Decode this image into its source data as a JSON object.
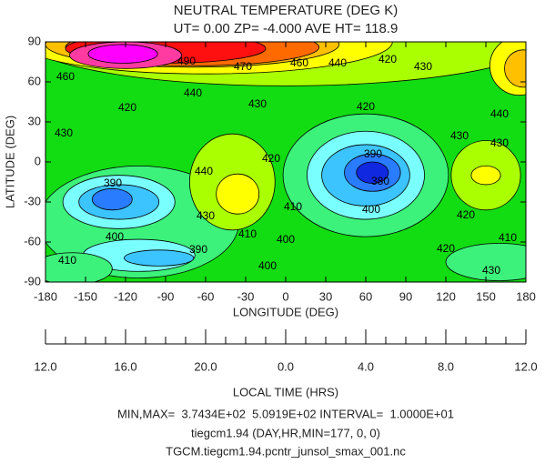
{
  "chart_data": {
    "type": "contour",
    "title": "NEUTRAL TEMPERATURE (DEG K)",
    "subtitle": "UT= 0.00 ZP= -4.000 AVE HT= 118.9",
    "x_label": "LONGITUDE (DEG)",
    "y_label": "LATITUDE (DEG)",
    "x2_label": "LOCAL TIME (HRS)",
    "xlim": [
      -180,
      180
    ],
    "xticks": [
      -180,
      -150,
      -120,
      -90,
      -60,
      -30,
      0,
      30,
      60,
      90,
      120,
      150,
      180
    ],
    "ylim": [
      -90,
      90
    ],
    "yticks": [
      -90,
      -60,
      -30,
      0,
      30,
      60,
      90
    ],
    "x2lim": [
      12,
      36
    ],
    "x2ticks": [
      {
        "value": 12,
        "label": "12.0"
      },
      {
        "value": 16,
        "label": "16.0"
      },
      {
        "value": 20,
        "label": "20.0"
      },
      {
        "value": 24,
        "label": "0.0"
      },
      {
        "value": 28,
        "label": "4.0"
      },
      {
        "value": 32,
        "label": "8.0"
      },
      {
        "value": 36,
        "label": "12.0"
      }
    ],
    "colors": [
      "#1028e0",
      "#2a7cff",
      "#3cc4ff",
      "#7affff",
      "#3cf27a",
      "#12dc12",
      "#aaff00",
      "#ffff00",
      "#ffc000",
      "#ff6a00",
      "#ff1010",
      "#ff3aa0",
      "#ff00ff"
    ],
    "contour_labels": [
      490,
      470,
      460,
      440,
      420,
      430,
      460,
      440,
      430,
      430,
      420,
      420,
      440,
      430,
      430,
      420,
      390,
      440,
      380,
      390,
      410,
      400,
      430,
      420,
      410,
      400,
      410,
      400,
      390,
      420,
      410,
      400,
      430
    ],
    "footer": [
      "MIN,MAX=  3.7434E+02  5.0919E+02 INTERVAL=  1.0000E+01",
      "tiegcm1.94 (DAY,HR,MIN=177, 0, 0)",
      "TGCM.tiegcm1.94.pcntr_junsol_smax_001.nc"
    ]
  }
}
